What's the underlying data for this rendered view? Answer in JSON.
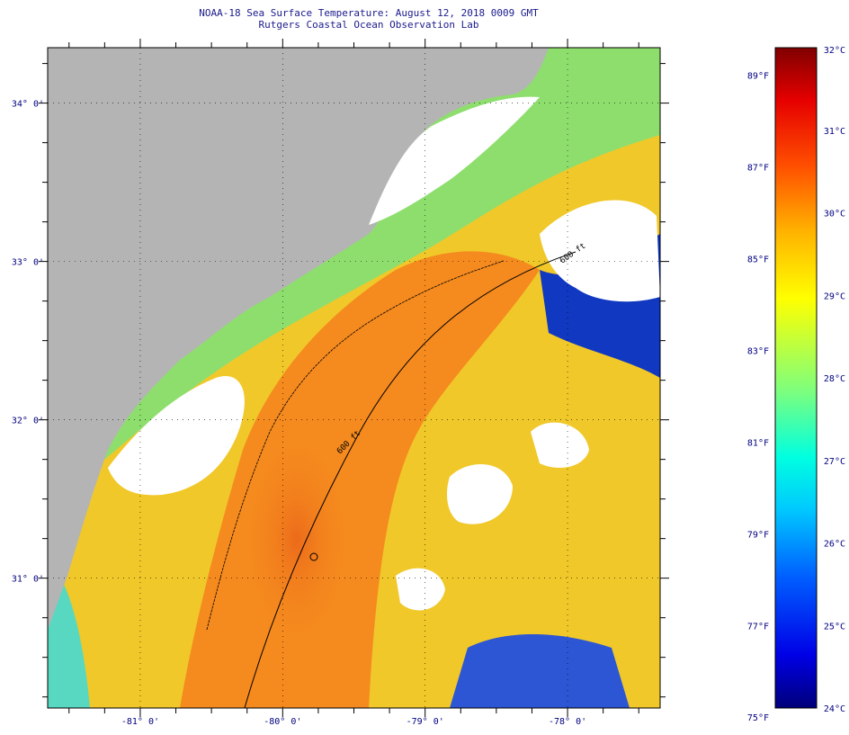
{
  "header": {
    "title": "NOAA-18 Sea Surface Temperature:  August 12, 2018 0009 GMT",
    "subtitle": "Rutgers Coastal Ocean Observation Lab"
  },
  "map": {
    "lat_range": [
      30.18,
      34.35
    ],
    "lon_range": [
      -81.65,
      -77.35
    ],
    "lat_labels": [
      "34° 0'",
      "33° 0'",
      "32° 0'",
      "31° 0'"
    ],
    "lat_values": [
      34,
      33,
      32,
      31
    ],
    "lon_labels": [
      "-81° 0'",
      "-80° 0'",
      "-79° 0'",
      "-78° 0'"
    ],
    "lon_values": [
      -81,
      -80,
      -79,
      -78
    ],
    "isobath_labels": [
      "600 ft",
      "600 ft"
    ]
  },
  "colorbar": {
    "celsius_labels": [
      "32°C",
      "31°C",
      "30°C",
      "29°C",
      "28°C",
      "27°C",
      "26°C",
      "25°C",
      "24°C"
    ],
    "celsius_values": [
      32,
      31,
      30,
      29,
      28,
      27,
      26,
      25,
      24
    ],
    "fahrenheit_labels": [
      "89°F",
      "87°F",
      "85°F",
      "83°F",
      "81°F",
      "79°F",
      "77°F",
      "75°F"
    ],
    "fahrenheit_values": [
      89,
      87,
      85,
      83,
      81,
      79,
      77,
      75
    ],
    "range_c": [
      24,
      32
    ]
  },
  "colors": {
    "land": "#b4b4b4",
    "cloud": "#ffffff",
    "warm": "#f58a1e",
    "mid": "#f3d52a",
    "cool": "#5ad7b9",
    "cold": "#0a2fb4"
  }
}
